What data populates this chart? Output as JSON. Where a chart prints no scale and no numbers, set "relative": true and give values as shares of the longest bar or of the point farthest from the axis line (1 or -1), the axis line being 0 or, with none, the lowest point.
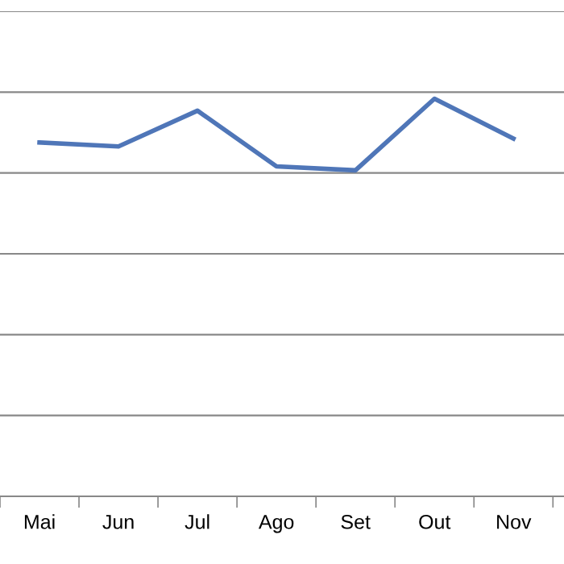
{
  "chart_data": {
    "type": "line",
    "relative": true,
    "categories": [
      "Mai",
      "Jun",
      "Jul",
      "Ago",
      "Set",
      "Out",
      "Nov"
    ],
    "series": [
      {
        "color": "#4f76b8",
        "values": [
          0.89,
          0.88,
          0.97,
          0.83,
          0.82,
          1.0,
          0.9
        ]
      }
    ],
    "grid": "y",
    "marker": "none",
    "line_style": "solid",
    "legend": false
  }
}
